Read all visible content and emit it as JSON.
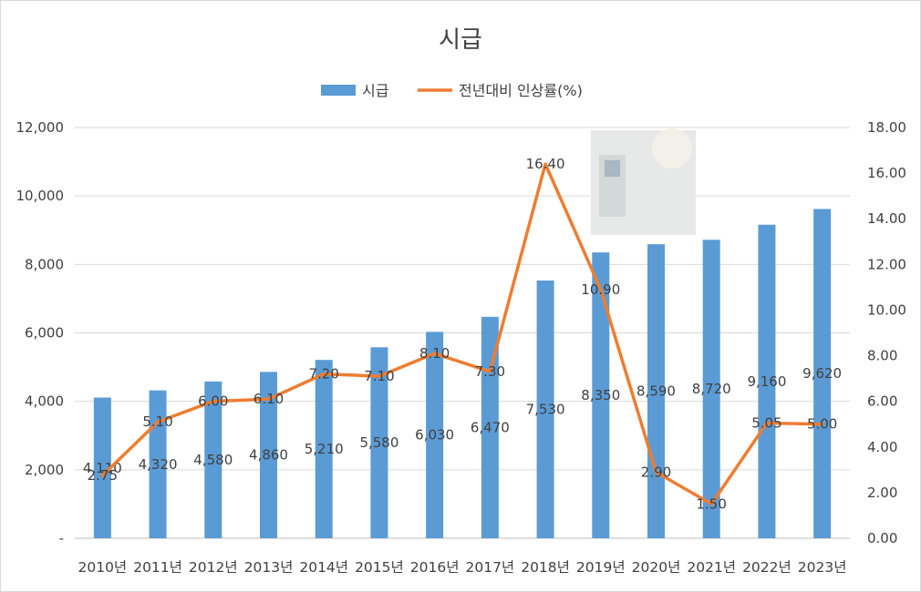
{
  "chart_data": {
    "type": "bar",
    "title": "시급",
    "categories": [
      "2010년",
      "2011년",
      "2012년",
      "2013년",
      "2014년",
      "2015년",
      "2016년",
      "2017년",
      "2018년",
      "2019년",
      "2020년",
      "2021년",
      "2022년",
      "2023년"
    ],
    "series": [
      {
        "name": "시급",
        "type": "bar",
        "axis": "left",
        "color": "#5b9bd5",
        "values": [
          4110,
          4320,
          4580,
          4860,
          5210,
          5580,
          6030,
          6470,
          7530,
          8350,
          8590,
          8720,
          9160,
          9620
        ],
        "labels": [
          "4,110",
          "4,320",
          "4,580",
          "4,860",
          "5,210",
          "5,580",
          "6,030",
          "6,470",
          "7,530",
          "8,350",
          "8,590",
          "8,720",
          "9,160",
          "9,620"
        ]
      },
      {
        "name": "전년대비 인상률(%)",
        "type": "line",
        "axis": "right",
        "color": "#ed7d31",
        "values": [
          2.75,
          5.1,
          6.0,
          6.1,
          7.2,
          7.1,
          8.1,
          7.3,
          16.4,
          10.9,
          2.9,
          1.5,
          5.05,
          5.0
        ],
        "labels": [
          "2.75",
          "5.10",
          "6.00",
          "6.10",
          "7.20",
          "7.10",
          "8.10",
          "7.30",
          "16.40",
          "10.90",
          "2.90",
          "1.50",
          "5.05",
          "5.00"
        ]
      }
    ],
    "y_left": {
      "min": 0,
      "max": 12000,
      "ticks": [
        "-",
        "2,000",
        "4,000",
        "6,000",
        "8,000",
        "10,000",
        "12,000"
      ]
    },
    "y_right": {
      "min": 0,
      "max": 18,
      "ticks": [
        "0.00",
        "2.00",
        "4.00",
        "6.00",
        "8.00",
        "10.00",
        "12.00",
        "14.00",
        "16.00",
        "18.00"
      ]
    },
    "legend_position": "top-center",
    "grid": true
  }
}
